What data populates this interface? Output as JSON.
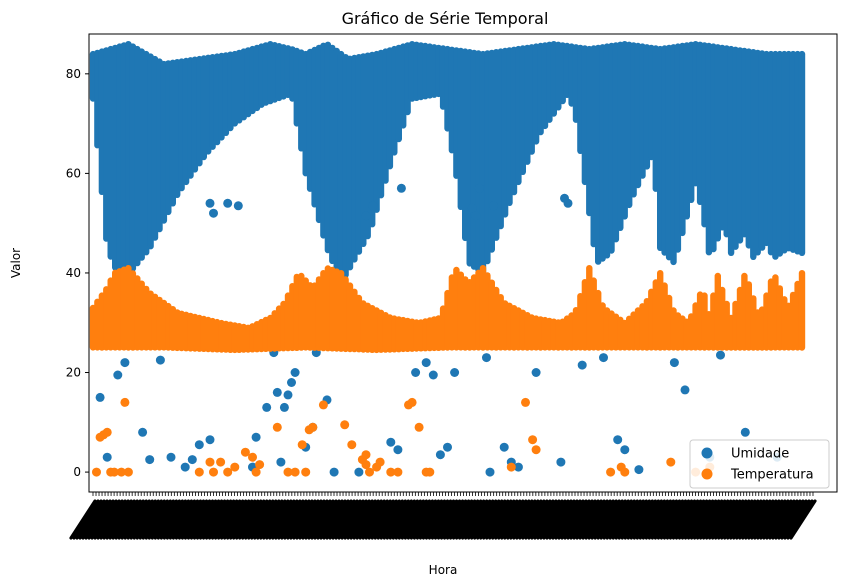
{
  "chart_data": {
    "type": "scatter",
    "title": "Gráfico de Série Temporal",
    "xlabel": "Hora",
    "ylabel": "Valor",
    "ylim": [
      -4,
      88
    ],
    "yticks": [
      0,
      20,
      40,
      60,
      80
    ],
    "xticks_note": "dense overlapping rotated tick labels (unreadable)",
    "grid": false,
    "legend": "lower-right",
    "series": [
      {
        "name": "Umidade",
        "color": "#1f77b4",
        "band_low": [
          [
            0.0,
            75
          ],
          [
            0.02,
            45
          ],
          [
            0.04,
            38
          ],
          [
            0.08,
            45
          ],
          [
            0.12,
            56
          ],
          [
            0.16,
            64
          ],
          [
            0.2,
            70
          ],
          [
            0.24,
            74
          ],
          [
            0.28,
            76
          ],
          [
            0.3,
            60
          ],
          [
            0.33,
            45
          ],
          [
            0.35,
            38
          ],
          [
            0.39,
            48
          ],
          [
            0.42,
            62
          ],
          [
            0.45,
            75
          ],
          [
            0.49,
            76
          ],
          [
            0.51,
            62
          ],
          [
            0.53,
            42
          ],
          [
            0.55,
            40
          ],
          [
            0.59,
            55
          ],
          [
            0.63,
            68
          ],
          [
            0.67,
            76
          ],
          [
            0.68,
            72
          ],
          [
            0.71,
            42
          ],
          [
            0.73,
            44
          ],
          [
            0.76,
            55
          ],
          [
            0.79,
            64
          ],
          [
            0.8,
            45
          ],
          [
            0.82,
            42
          ],
          [
            0.85,
            58
          ],
          [
            0.86,
            52
          ],
          [
            0.87,
            43
          ],
          [
            0.89,
            50
          ],
          [
            0.9,
            44
          ],
          [
            0.92,
            48
          ],
          [
            0.93,
            43
          ],
          [
            0.95,
            46
          ],
          [
            0.96,
            43
          ],
          [
            0.98,
            45
          ],
          [
            1.0,
            44
          ]
        ],
        "band_high": [
          [
            0.0,
            84
          ],
          [
            0.05,
            86
          ],
          [
            0.1,
            82
          ],
          [
            0.15,
            83
          ],
          [
            0.2,
            84
          ],
          [
            0.25,
            86
          ],
          [
            0.28,
            85
          ],
          [
            0.3,
            84
          ],
          [
            0.33,
            86
          ],
          [
            0.36,
            83
          ],
          [
            0.4,
            84
          ],
          [
            0.45,
            86
          ],
          [
            0.5,
            85
          ],
          [
            0.55,
            84
          ],
          [
            0.6,
            85
          ],
          [
            0.65,
            86
          ],
          [
            0.7,
            85
          ],
          [
            0.75,
            86
          ],
          [
            0.8,
            85
          ],
          [
            0.85,
            86
          ],
          [
            0.9,
            85
          ],
          [
            0.95,
            84
          ],
          [
            1.0,
            84
          ]
        ],
        "outliers": [
          [
            0.01,
            15
          ],
          [
            0.02,
            3
          ],
          [
            0.035,
            19.5
          ],
          [
            0.045,
            22
          ],
          [
            0.07,
            8
          ],
          [
            0.08,
            2.5
          ],
          [
            0.095,
            22.5
          ],
          [
            0.11,
            3
          ],
          [
            0.13,
            1
          ],
          [
            0.14,
            2.5
          ],
          [
            0.15,
            5.5
          ],
          [
            0.165,
            6.5
          ],
          [
            0.165,
            54
          ],
          [
            0.17,
            52
          ],
          [
            0.19,
            54
          ],
          [
            0.205,
            53.5
          ],
          [
            0.225,
            1
          ],
          [
            0.23,
            7
          ],
          [
            0.245,
            13
          ],
          [
            0.255,
            24
          ],
          [
            0.26,
            16
          ],
          [
            0.265,
            2
          ],
          [
            0.27,
            13
          ],
          [
            0.275,
            15.5
          ],
          [
            0.28,
            18
          ],
          [
            0.285,
            20
          ],
          [
            0.3,
            5
          ],
          [
            0.31,
            9
          ],
          [
            0.315,
            24
          ],
          [
            0.33,
            14.5
          ],
          [
            0.34,
            0
          ],
          [
            0.375,
            0
          ],
          [
            0.385,
            51.5
          ],
          [
            0.395,
            53.5
          ],
          [
            0.42,
            6
          ],
          [
            0.43,
            4.5
          ],
          [
            0.435,
            57
          ],
          [
            0.455,
            20
          ],
          [
            0.47,
            22
          ],
          [
            0.48,
            19.5
          ],
          [
            0.49,
            3.5
          ],
          [
            0.5,
            5
          ],
          [
            0.51,
            20
          ],
          [
            0.535,
            53
          ],
          [
            0.545,
            57
          ],
          [
            0.54,
            51.5
          ],
          [
            0.555,
            23
          ],
          [
            0.56,
            0
          ],
          [
            0.565,
            53.5
          ],
          [
            0.58,
            5
          ],
          [
            0.59,
            2
          ],
          [
            0.6,
            1
          ],
          [
            0.625,
            20
          ],
          [
            0.66,
            2
          ],
          [
            0.665,
            55
          ],
          [
            0.67,
            54
          ],
          [
            0.69,
            21.5
          ],
          [
            0.72,
            23
          ],
          [
            0.74,
            6.5
          ],
          [
            0.75,
            4.5
          ],
          [
            0.77,
            0.5
          ],
          [
            0.82,
            22
          ],
          [
            0.835,
            16.5
          ],
          [
            0.87,
            3
          ],
          [
            0.885,
            23.5
          ],
          [
            0.92,
            8
          ],
          [
            0.965,
            3
          ]
        ]
      },
      {
        "name": "Temperatura",
        "color": "#ff7f0e",
        "band_low": [
          [
            0.0,
            25
          ],
          [
            0.1,
            25
          ],
          [
            0.2,
            24.5
          ],
          [
            0.3,
            25
          ],
          [
            0.4,
            24.5
          ],
          [
            0.5,
            25
          ],
          [
            0.6,
            25
          ],
          [
            0.7,
            25
          ],
          [
            0.8,
            25
          ],
          [
            0.9,
            25
          ],
          [
            1.0,
            25
          ]
        ],
        "band_high": [
          [
            0.0,
            33
          ],
          [
            0.02,
            37
          ],
          [
            0.03,
            40
          ],
          [
            0.05,
            41
          ],
          [
            0.08,
            36
          ],
          [
            0.12,
            32
          ],
          [
            0.18,
            30
          ],
          [
            0.22,
            29
          ],
          [
            0.25,
            31
          ],
          [
            0.27,
            34
          ],
          [
            0.29,
            40
          ],
          [
            0.31,
            37
          ],
          [
            0.33,
            41
          ],
          [
            0.35,
            40
          ],
          [
            0.38,
            34
          ],
          [
            0.42,
            31
          ],
          [
            0.46,
            30
          ],
          [
            0.49,
            31
          ],
          [
            0.51,
            41
          ],
          [
            0.53,
            38
          ],
          [
            0.55,
            41
          ],
          [
            0.58,
            34
          ],
          [
            0.62,
            31
          ],
          [
            0.66,
            30
          ],
          [
            0.68,
            32
          ],
          [
            0.7,
            41
          ],
          [
            0.72,
            33
          ],
          [
            0.75,
            30
          ],
          [
            0.78,
            34
          ],
          [
            0.8,
            40
          ],
          [
            0.82,
            32
          ],
          [
            0.84,
            30
          ],
          [
            0.86,
            37
          ],
          [
            0.87,
            31
          ],
          [
            0.88,
            40
          ],
          [
            0.9,
            31
          ],
          [
            0.92,
            40
          ],
          [
            0.94,
            31
          ],
          [
            0.96,
            40
          ],
          [
            0.98,
            33
          ],
          [
            1.0,
            40
          ]
        ],
        "outliers": [
          [
            0.005,
            0
          ],
          [
            0.01,
            7
          ],
          [
            0.015,
            7.5
          ],
          [
            0.02,
            8
          ],
          [
            0.025,
            0
          ],
          [
            0.03,
            0
          ],
          [
            0.04,
            0
          ],
          [
            0.045,
            14
          ],
          [
            0.05,
            0
          ],
          [
            0.15,
            0
          ],
          [
            0.165,
            2
          ],
          [
            0.17,
            0
          ],
          [
            0.18,
            2
          ],
          [
            0.19,
            0
          ],
          [
            0.2,
            1
          ],
          [
            0.215,
            4
          ],
          [
            0.225,
            3
          ],
          [
            0.23,
            0
          ],
          [
            0.235,
            1.5
          ],
          [
            0.26,
            9
          ],
          [
            0.275,
            0
          ],
          [
            0.285,
            0
          ],
          [
            0.295,
            5.5
          ],
          [
            0.3,
            0
          ],
          [
            0.305,
            8.5
          ],
          [
            0.31,
            9
          ],
          [
            0.325,
            13.5
          ],
          [
            0.355,
            9.5
          ],
          [
            0.365,
            5.5
          ],
          [
            0.38,
            2.5
          ],
          [
            0.385,
            1.5
          ],
          [
            0.385,
            3.5
          ],
          [
            0.39,
            0
          ],
          [
            0.4,
            1
          ],
          [
            0.405,
            2
          ],
          [
            0.42,
            0
          ],
          [
            0.43,
            0
          ],
          [
            0.445,
            13.5
          ],
          [
            0.45,
            14
          ],
          [
            0.46,
            9
          ],
          [
            0.47,
            0
          ],
          [
            0.475,
            0
          ],
          [
            0.59,
            1
          ],
          [
            0.61,
            14
          ],
          [
            0.62,
            6.5
          ],
          [
            0.625,
            4.5
          ],
          [
            0.73,
            0
          ],
          [
            0.745,
            1
          ],
          [
            0.75,
            0
          ],
          [
            0.815,
            2
          ],
          [
            0.85,
            0
          ],
          [
            0.87,
            1
          ]
        ]
      }
    ]
  }
}
